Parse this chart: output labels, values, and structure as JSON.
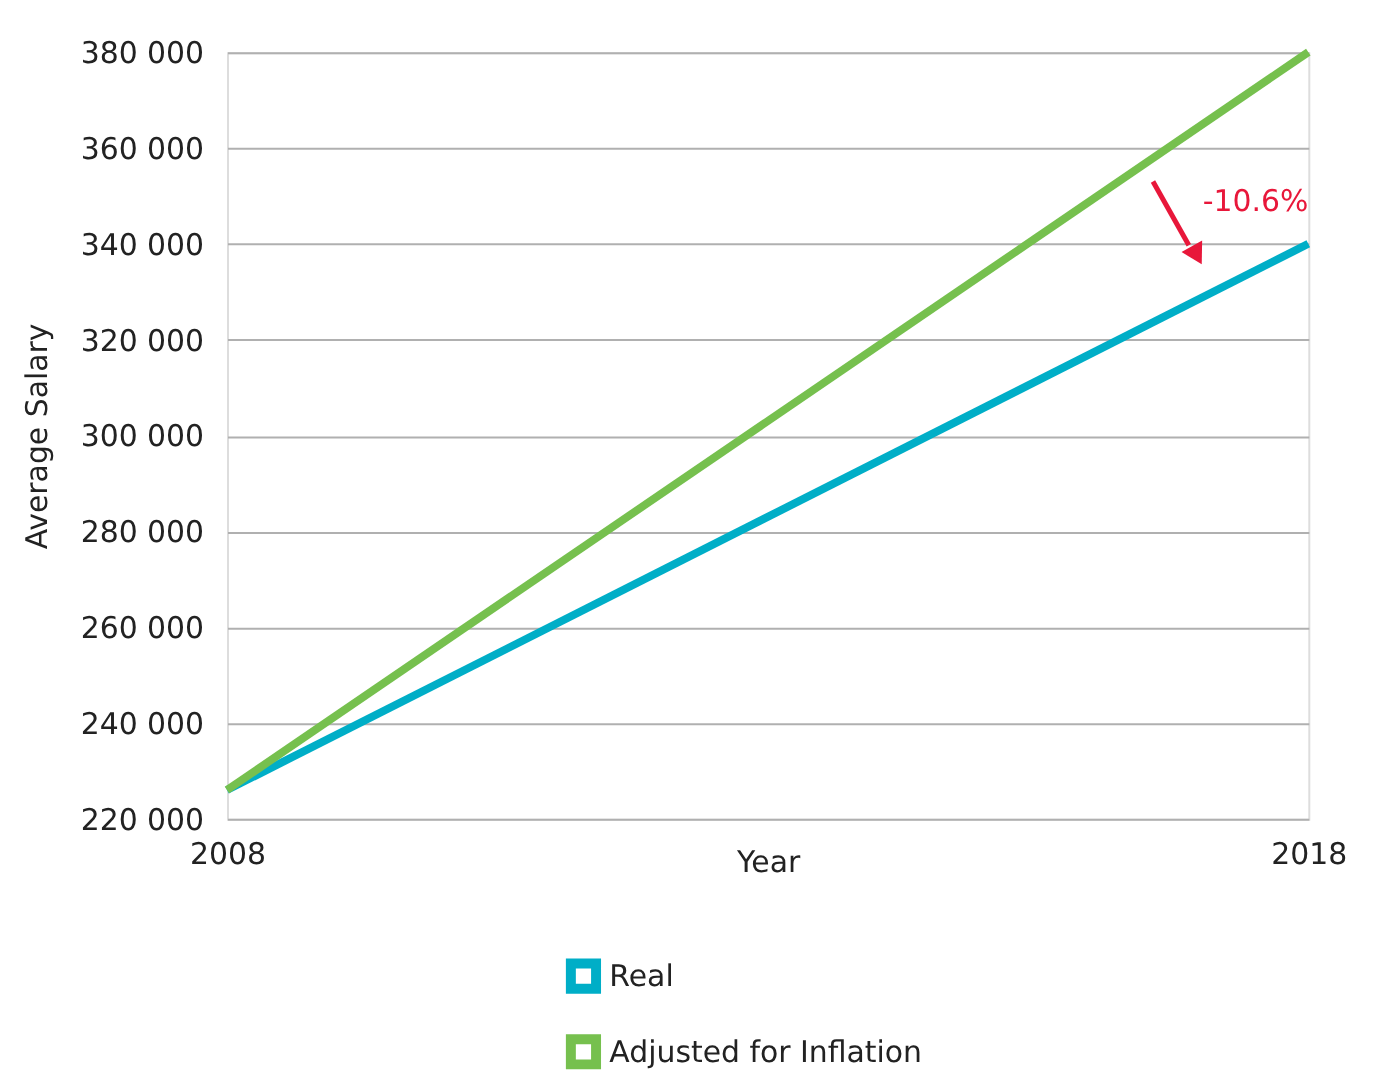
{
  "chart_data": {
    "type": "line",
    "xlabel": "Year",
    "ylabel": "Average Salary",
    "x": [
      2008,
      2018
    ],
    "xlim": [
      2008,
      2018
    ],
    "xticks": [
      2008,
      2018
    ],
    "ylim": [
      220000,
      380000
    ],
    "yticks": [
      {
        "value": 220000,
        "label": "220 000"
      },
      {
        "value": 240000,
        "label": "240 000"
      },
      {
        "value": 260000,
        "label": "260 000"
      },
      {
        "value": 280000,
        "label": "280 000"
      },
      {
        "value": 300000,
        "label": "300 000"
      },
      {
        "value": 320000,
        "label": "320 000"
      },
      {
        "value": 340000,
        "label": "340 000"
      },
      {
        "value": 360000,
        "label": "360 000"
      },
      {
        "value": 380000,
        "label": "380 000"
      }
    ],
    "series": [
      {
        "name": "Real",
        "color": "#00aec7",
        "values": [
          226000,
          340000
        ]
      },
      {
        "name": "Adjusted for Inflation",
        "color": "#76c04e",
        "values": [
          226000,
          380000
        ]
      }
    ],
    "annotations": [
      "-10.6%"
    ],
    "grid": "y",
    "legend": "bottom",
    "marker": "none",
    "line_style": "solid"
  }
}
